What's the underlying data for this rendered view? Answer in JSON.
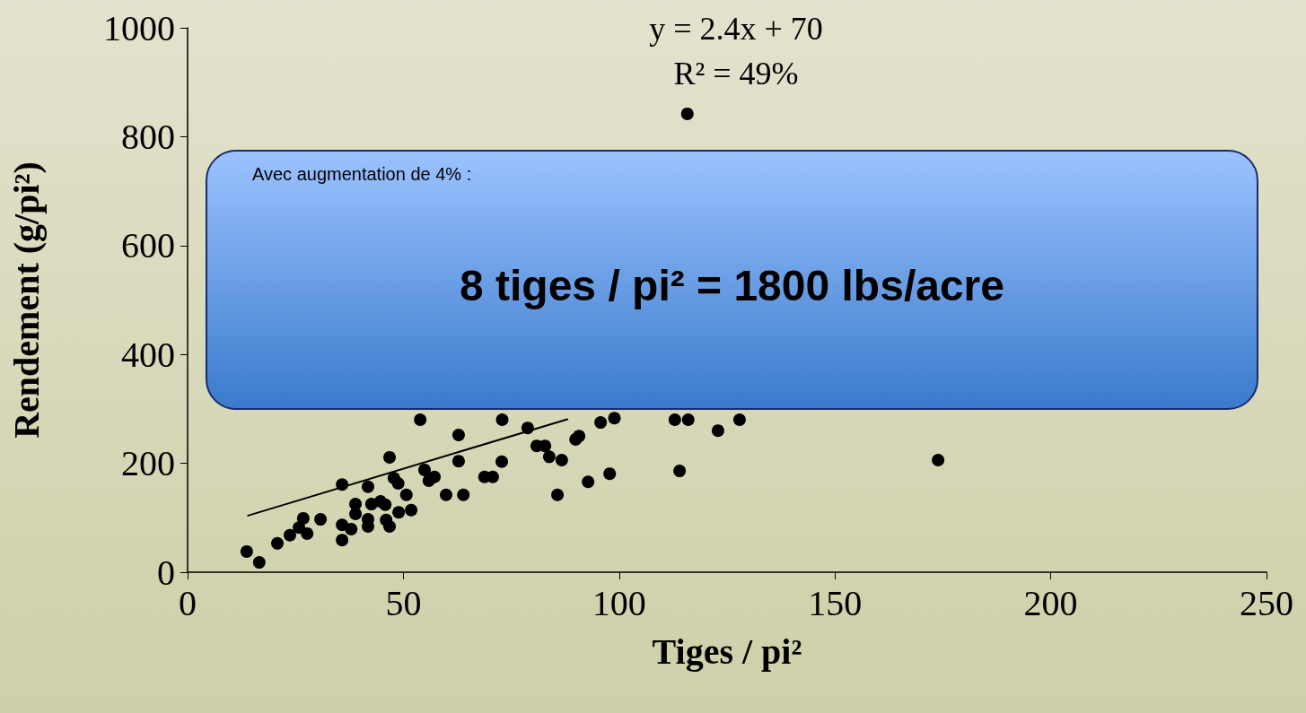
{
  "chart_data": {
    "type": "scatter",
    "xlabel": "Tiges / pi²",
    "ylabel": "Rendement (g/pi²)",
    "xlim": [
      0,
      250
    ],
    "xticks": [
      0,
      50,
      100,
      150,
      200,
      250
    ],
    "ylim": [
      0,
      1000
    ],
    "yticks": [
      0,
      200,
      400,
      600,
      800,
      1000
    ],
    "marker": "circle",
    "annotations": [
      "y = 2.4x + 70",
      "R² = 49%",
      "Avec augmentation de 4% :",
      "8 tiges / pi² = 1800 lbs/acre"
    ],
    "series": [
      {
        "color": "#000000",
        "x": [
          13.7,
          16.6,
          20.8,
          23.7,
          25.8,
          26.8,
          27.7,
          30.8,
          35.8,
          35.8,
          35.8,
          37.9,
          38.9,
          38.9,
          41.8,
          41.8,
          41.8,
          42.6,
          44.7,
          45.8,
          46,
          46.8,
          46.8,
          47.8,
          48.8,
          48.9,
          50.7,
          51.8,
          54.9,
          55.9,
          57.2,
          59.9,
          62.8,
          62.8,
          63.9,
          68.8,
          70.7,
          72.8,
          78.8,
          80.9,
          82.8,
          83.8,
          86.7,
          85.7,
          89.9,
          90.7,
          92.8,
          95.7,
          97.8,
          98.9,
          114,
          122.9,
          115.8,
          173.9,
          53.9,
          72.9,
          112.9,
          116,
          127.9
        ],
        "values": [
          38,
          18,
          53,
          68,
          82,
          99,
          71,
          97,
          161,
          87,
          59,
          79,
          125,
          107,
          157,
          97,
          84,
          125,
          130,
          124,
          96,
          211,
          84,
          173,
          163,
          110,
          142,
          114,
          188,
          168,
          175,
          142,
          252,
          204,
          142,
          175,
          175,
          203,
          265,
          232,
          232,
          212,
          206,
          142,
          244,
          250,
          166,
          275,
          181,
          283,
          186,
          260,
          842,
          206,
          280,
          280,
          280,
          280,
          280
        ]
      },
      {
        "type": "line",
        "color": "#000000",
        "marker": "none",
        "x": [
          14,
          88
        ],
        "values": [
          104,
          281
        ]
      }
    ]
  }
}
